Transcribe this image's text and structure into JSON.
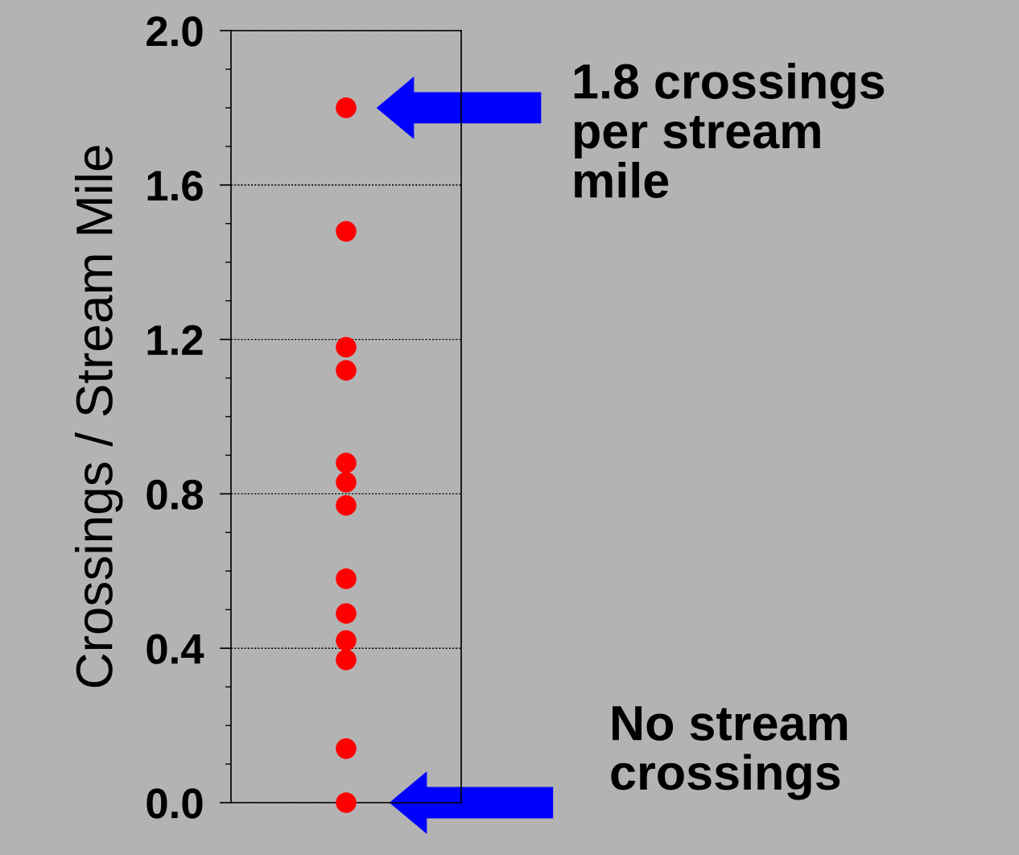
{
  "chart_data": {
    "type": "scatter",
    "ylabel": "Crossings / Stream Mile",
    "categories": [
      null
    ],
    "series": [
      {
        "color": "#ff0000",
        "x": [
          null,
          null,
          null,
          null,
          null,
          null,
          null,
          null,
          null,
          null,
          null,
          null,
          null
        ],
        "values": [
          1.8,
          1.48,
          1.18,
          1.12,
          0.88,
          0.83,
          0.77,
          0.58,
          0.49,
          0.42,
          0.37,
          0.14,
          0.0
        ]
      }
    ],
    "marker": "circle",
    "ylim": [
      0,
      2.0
    ],
    "yticks": [
      {
        "value": 0.0,
        "label": "0.0"
      },
      {
        "value": 0.1,
        "label": null
      },
      {
        "value": 0.2,
        "label": null
      },
      {
        "value": 0.3,
        "label": null
      },
      0.4,
      {
        "value": 0.5,
        "label": null
      },
      {
        "value": 0.6,
        "label": null
      },
      {
        "value": 0.7,
        "label": null
      },
      0.8,
      {
        "value": 0.9,
        "label": null
      },
      {
        "value": 1.0,
        "label": null
      },
      {
        "value": 1.1,
        "label": null
      },
      1.2,
      {
        "value": 1.3,
        "label": null
      },
      {
        "value": 1.4,
        "label": null
      },
      {
        "value": 1.5,
        "label": null
      },
      1.6,
      {
        "value": 1.7,
        "label": null
      },
      {
        "value": 1.8,
        "label": null
      },
      {
        "value": 1.9,
        "label": null
      },
      {
        "value": 2.0,
        "label": "2.0"
      }
    ],
    "grid": "y",
    "annotations": [
      "1.8 crossings\nper stream\nmile",
      "No stream\ncrossings"
    ]
  }
}
